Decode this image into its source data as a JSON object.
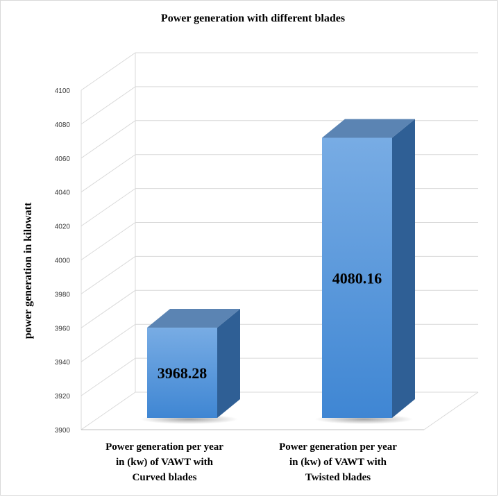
{
  "chart_data": {
    "type": "bar",
    "title": "Power generation with different blades",
    "xlabel": "",
    "ylabel": "power generation in kilowatt",
    "categories": [
      "Power generation per year in (kw) of VAWT with Curved blades",
      "Power generation per year in (kw) of VAWT with Twisted blades"
    ],
    "category_lines": [
      [
        "Power generation per year",
        "in (kw) of VAWT with",
        "Curved blades"
      ],
      [
        "Power generation per year",
        "in (kw) of VAWT with",
        "Twisted blades"
      ]
    ],
    "values": [
      3968.28,
      4080.16
    ],
    "value_labels": [
      "3968.28",
      "4080.16"
    ],
    "ylim": [
      3900,
      4100
    ],
    "yticks": [
      3900,
      3920,
      3940,
      3960,
      3980,
      4000,
      4020,
      4040,
      4060,
      4080,
      4100
    ],
    "style": "3d-column",
    "grid": true,
    "legend": "none",
    "colors": {
      "bar_front_top": "#78ace4",
      "bar_front_bottom": "#3f86d3",
      "bar_top": "#5b84b3",
      "bar_side": "#2f5f95",
      "grid": "#d9d9d9",
      "axis": "#bfbfbf"
    }
  }
}
